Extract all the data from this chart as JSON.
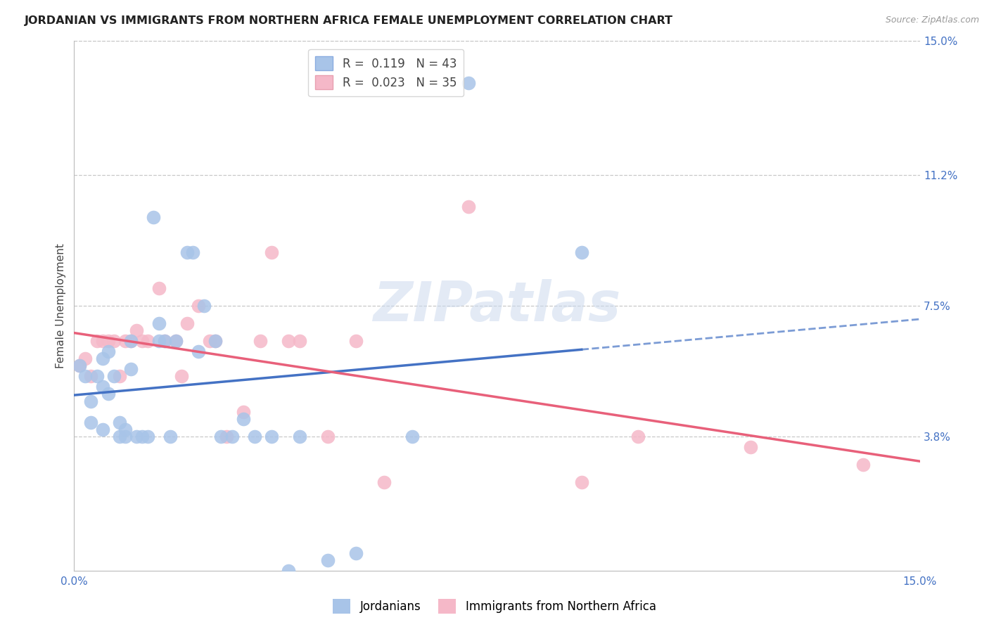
{
  "title": "JORDANIAN VS IMMIGRANTS FROM NORTHERN AFRICA FEMALE UNEMPLOYMENT CORRELATION CHART",
  "source": "Source: ZipAtlas.com",
  "ylabel": "Female Unemployment",
  "xlim": [
    0.0,
    0.15
  ],
  "ylim": [
    0.0,
    0.15
  ],
  "ytick_labels_right": [
    "15.0%",
    "11.2%",
    "7.5%",
    "3.8%"
  ],
  "ytick_vals_right": [
    0.15,
    0.112,
    0.075,
    0.038
  ],
  "grid_color": "#c8c8c8",
  "background_color": "#ffffff",
  "watermark_text": "ZIPatlas",
  "jordanians_x": [
    0.001,
    0.002,
    0.003,
    0.003,
    0.004,
    0.005,
    0.005,
    0.005,
    0.006,
    0.006,
    0.007,
    0.008,
    0.008,
    0.009,
    0.009,
    0.01,
    0.01,
    0.011,
    0.012,
    0.013,
    0.014,
    0.015,
    0.015,
    0.016,
    0.017,
    0.018,
    0.02,
    0.021,
    0.022,
    0.023,
    0.025,
    0.026,
    0.028,
    0.03,
    0.032,
    0.035,
    0.038,
    0.04,
    0.045,
    0.05,
    0.06,
    0.07,
    0.09
  ],
  "jordanians_y": [
    0.058,
    0.055,
    0.048,
    0.042,
    0.055,
    0.06,
    0.052,
    0.04,
    0.062,
    0.05,
    0.055,
    0.042,
    0.038,
    0.04,
    0.038,
    0.065,
    0.057,
    0.038,
    0.038,
    0.038,
    0.1,
    0.065,
    0.07,
    0.065,
    0.038,
    0.065,
    0.09,
    0.09,
    0.062,
    0.075,
    0.065,
    0.038,
    0.038,
    0.043,
    0.038,
    0.038,
    0.0,
    0.038,
    0.003,
    0.005,
    0.038,
    0.138,
    0.09
  ],
  "north_africa_x": [
    0.001,
    0.002,
    0.003,
    0.004,
    0.005,
    0.006,
    0.007,
    0.008,
    0.009,
    0.01,
    0.011,
    0.012,
    0.013,
    0.015,
    0.016,
    0.018,
    0.019,
    0.02,
    0.022,
    0.024,
    0.025,
    0.027,
    0.03,
    0.033,
    0.035,
    0.038,
    0.04,
    0.045,
    0.05,
    0.055,
    0.07,
    0.09,
    0.1,
    0.12,
    0.14
  ],
  "north_africa_y": [
    0.058,
    0.06,
    0.055,
    0.065,
    0.065,
    0.065,
    0.065,
    0.055,
    0.065,
    0.065,
    0.068,
    0.065,
    0.065,
    0.08,
    0.065,
    0.065,
    0.055,
    0.07,
    0.075,
    0.065,
    0.065,
    0.038,
    0.045,
    0.065,
    0.09,
    0.065,
    0.065,
    0.038,
    0.065,
    0.025,
    0.103,
    0.025,
    0.038,
    0.035,
    0.03
  ],
  "jordan_R": 0.119,
  "jordan_N": 43,
  "nafrica_R": 0.023,
  "nafrica_N": 35,
  "jordan_color": "#a8c4e8",
  "nafrica_color": "#f5b8c8",
  "jordan_line_color": "#4472c4",
  "nafrica_line_color": "#e8607a",
  "legend_label_jordan": "Jordanians",
  "legend_label_nafrica": "Immigrants from Northern Africa",
  "title_fontsize": 11.5,
  "source_fontsize": 9,
  "axis_label_fontsize": 11,
  "tick_fontsize": 11,
  "legend_fontsize": 12
}
